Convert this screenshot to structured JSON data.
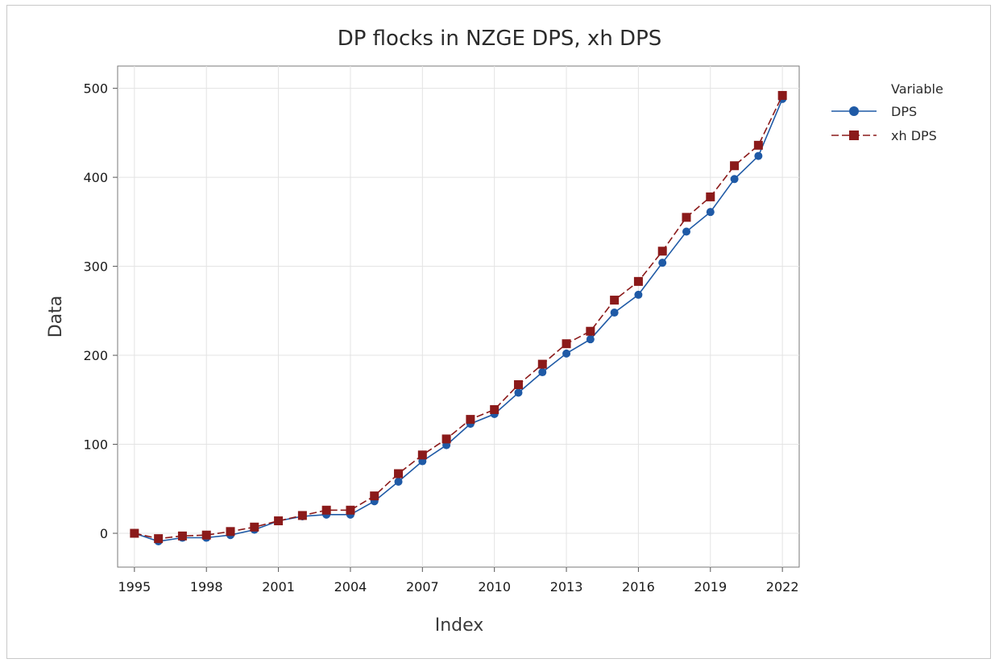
{
  "chart_data": {
    "type": "line",
    "title": "DP flocks in NZGE  DPS, xh DPS",
    "xlabel": "Index",
    "ylabel": "Data",
    "xlim": [
      1994.3,
      2022.7
    ],
    "ylim": [
      -38,
      525
    ],
    "xticks": [
      "1995",
      "1998",
      "2001",
      "2004",
      "2007",
      "2010",
      "2013",
      "2016",
      "2019",
      "2022"
    ],
    "yticks": [
      "0",
      "100",
      "200",
      "300",
      "400",
      "500"
    ],
    "grid": true,
    "legend": {
      "title": "Variable",
      "position": "right"
    },
    "x": [
      1995,
      1996,
      1997,
      1998,
      1999,
      2000,
      2001,
      2002,
      2003,
      2004,
      2005,
      2006,
      2007,
      2008,
      2009,
      2010,
      2011,
      2012,
      2013,
      2014,
      2015,
      2016,
      2017,
      2018,
      2019,
      2020,
      2021,
      2022
    ],
    "series": [
      {
        "name": "DPS",
        "color": "#1f5aa6",
        "marker": "circle",
        "line": "solid",
        "values": [
          0,
          -9,
          -5,
          -5,
          -2,
          4,
          14,
          19,
          21,
          21,
          36,
          58,
          81,
          99,
          123,
          134,
          158,
          181,
          202,
          218,
          248,
          268,
          304,
          339,
          361,
          398,
          424,
          488
        ]
      },
      {
        "name": "xh DPS",
        "color": "#8b1a1a",
        "marker": "square",
        "line": "dashed",
        "values": [
          0,
          -6,
          -3,
          -2,
          2,
          7,
          14,
          20,
          26,
          26,
          42,
          67,
          88,
          106,
          128,
          139,
          167,
          190,
          213,
          227,
          262,
          283,
          317,
          355,
          378,
          413,
          436,
          492
        ]
      }
    ]
  }
}
